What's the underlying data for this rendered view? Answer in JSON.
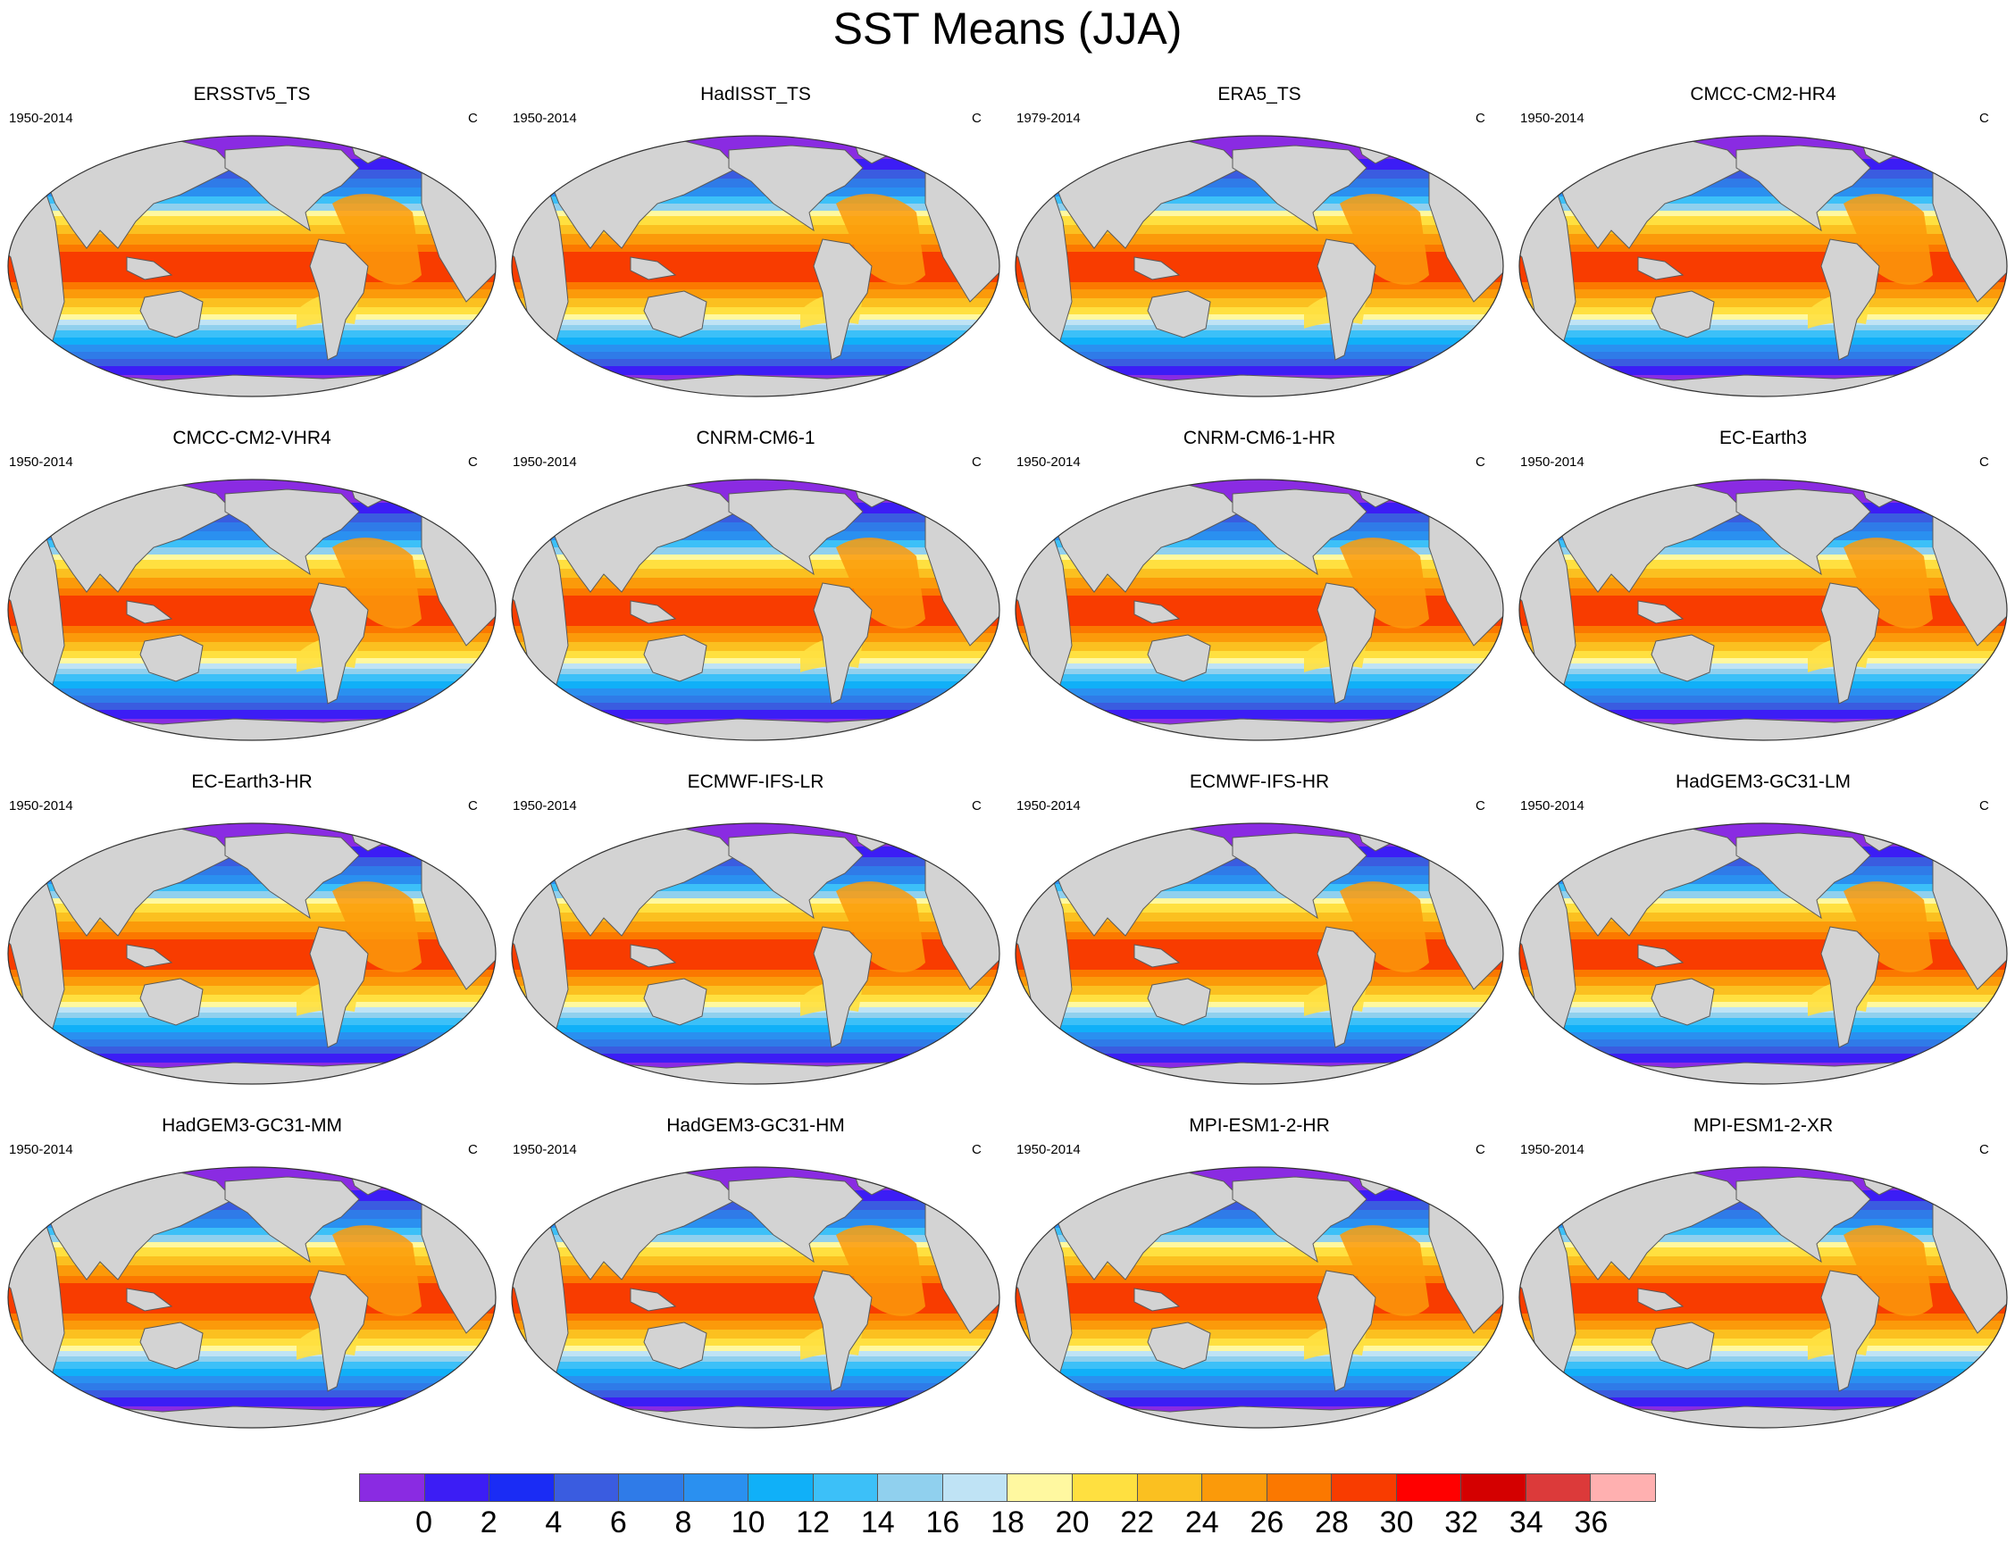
{
  "title": "SST Means (JJA)",
  "panels": [
    {
      "title": "ERSSTv5_TS",
      "period": "1950-2014",
      "units": "C"
    },
    {
      "title": "HadISST_TS",
      "period": "1950-2014",
      "units": "C"
    },
    {
      "title": "ERA5_TS",
      "period": "1979-2014",
      "units": "C"
    },
    {
      "title": "CMCC-CM2-HR4",
      "period": "1950-2014",
      "units": "C"
    },
    {
      "title": "CMCC-CM2-VHR4",
      "period": "1950-2014",
      "units": "C"
    },
    {
      "title": "CNRM-CM6-1",
      "period": "1950-2014",
      "units": "C"
    },
    {
      "title": "CNRM-CM6-1-HR",
      "period": "1950-2014",
      "units": "C"
    },
    {
      "title": "EC-Earth3",
      "period": "1950-2014",
      "units": "C"
    },
    {
      "title": "EC-Earth3-HR",
      "period": "1950-2014",
      "units": "C"
    },
    {
      "title": "ECMWF-IFS-LR",
      "period": "1950-2014",
      "units": "C"
    },
    {
      "title": "ECMWF-IFS-HR",
      "period": "1950-2014",
      "units": "C"
    },
    {
      "title": "HadGEM3-GC31-LM",
      "period": "1950-2014",
      "units": "C"
    },
    {
      "title": "HadGEM3-GC31-MM",
      "period": "1950-2014",
      "units": "C"
    },
    {
      "title": "HadGEM3-GC31-HM",
      "period": "1950-2014",
      "units": "C"
    },
    {
      "title": "MPI-ESM1-2-HR",
      "period": "1950-2014",
      "units": "C"
    },
    {
      "title": "MPI-ESM1-2-XR",
      "period": "1950-2014",
      "units": "C"
    }
  ],
  "colorbar": {
    "labels": [
      "0",
      "2",
      "4",
      "6",
      "8",
      "10",
      "12",
      "14",
      "16",
      "18",
      "20",
      "22",
      "24",
      "26",
      "28",
      "30",
      "32",
      "34",
      "36"
    ],
    "colors": [
      "#8a2be2",
      "#3c1df5",
      "#1a2cf5",
      "#3a5ce0",
      "#2f7be8",
      "#2a90f0",
      "#10b0f8",
      "#3cc0f8",
      "#90d0ee",
      "#bfe3f5",
      "#fff8a0",
      "#ffe040",
      "#fbc020",
      "#fb9a0a",
      "#fb7800",
      "#f83c00",
      "#ff0000",
      "#d40000",
      "#dc3a3a",
      "#ffb0b0"
    ]
  },
  "map_colors": {
    "land": "#d3d3d3",
    "land_outline": "#5a5a5a"
  }
}
